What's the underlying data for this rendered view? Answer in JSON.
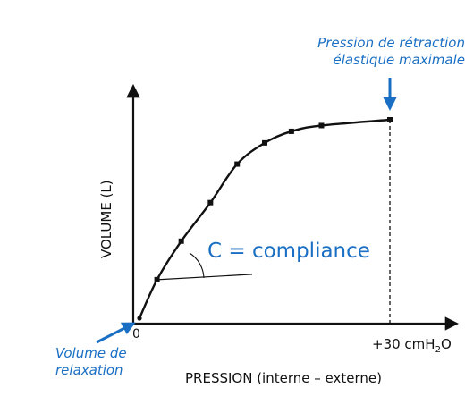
{
  "chart_data": {
    "type": "line",
    "title": "",
    "xlabel": "PRESSION (interne – externe)",
    "ylabel": "VOLUME (L)",
    "x_tick_labels": {
      "origin": "0",
      "max_prefix": "+30 cmH",
      "max_sub": "2",
      "max_suffix": "O"
    },
    "xlim": [
      0,
      34
    ],
    "ylim": [
      0,
      1.1
    ],
    "series": [
      {
        "points": [
          {
            "x": 0,
            "y": 0.0
          },
          {
            "x": 2.1,
            "y": 0.2
          },
          {
            "x": 5.0,
            "y": 0.4
          },
          {
            "x": 8.5,
            "y": 0.6
          },
          {
            "x": 11.7,
            "y": 0.8
          },
          {
            "x": 15.0,
            "y": 0.91
          },
          {
            "x": 18.2,
            "y": 0.97
          },
          {
            "x": 21.8,
            "y": 1.0
          },
          {
            "x": 30.0,
            "y": 1.03
          }
        ]
      }
    ],
    "vertical_reference_x": 30,
    "compliance_label": "C = compliance",
    "annotations": {
      "max_recoil": [
        "Pression de rétraction",
        "élastique maximale"
      ],
      "relaxation_volume": [
        "Volume de",
        "relaxation"
      ]
    },
    "colors": {
      "annotation": "#1a6fc4",
      "line": "#111111"
    }
  }
}
